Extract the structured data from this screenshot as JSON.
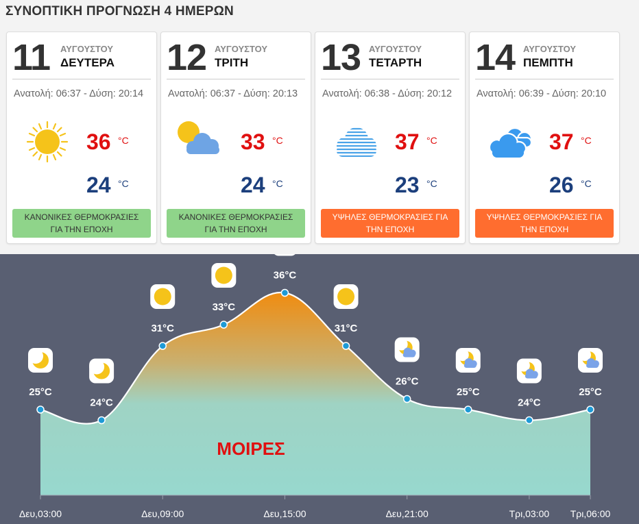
{
  "page_title": "ΣΥΝΟΠΤΙΚΗ ΠΡΟΓΝΩΣΗ 4 ΗΜΕΡΩΝ",
  "days": [
    {
      "day": "11",
      "month": "ΑΥΓΟΥΣΤΟΥ",
      "weekday": "ΔΕΥΤΕΡΑ",
      "sun_times": "Ανατολή: 06:37 - Δύση: 20:14",
      "icon": "sun-icon",
      "max": "36",
      "min": "24",
      "unit": "°C",
      "badge": "ΚΑΝΟΝΙΚΕΣ ΘΕΡΜΟΚΡΑΣΙΕΣ ΓΙΑ ΤΗΝ ΕΠΟΧΗ",
      "badge_type": "normal"
    },
    {
      "day": "12",
      "month": "ΑΥΓΟΥΣΤΟΥ",
      "weekday": "ΤΡΙΤΗ",
      "sun_times": "Ανατολή: 06:37 - Δύση: 20:13",
      "icon": "partly-cloudy-icon",
      "max": "33",
      "min": "24",
      "unit": "°C",
      "badge": "ΚΑΝΟΝΙΚΕΣ ΘΕΡΜΟΚΡΑΣΙΕΣ ΓΙΑ ΤΗΝ ΕΠΟΧΗ",
      "badge_type": "normal"
    },
    {
      "day": "13",
      "month": "ΑΥΓΟΥΣΤΟΥ",
      "weekday": "ΤΕΤΑΡΤΗ",
      "sun_times": "Ανατολή: 06:38 - Δύση: 20:12",
      "icon": "haze-icon",
      "max": "37",
      "min": "23",
      "unit": "°C",
      "badge": "ΥΨΗΛΕΣ ΘΕΡΜΟΚΡΑΣΙΕΣ ΓΙΑ ΤΗΝ ΕΠΟΧΗ",
      "badge_type": "high"
    },
    {
      "day": "14",
      "month": "ΑΥΓΟΥΣΤΟΥ",
      "weekday": "ΠΕΜΠΤΗ",
      "sun_times": "Ανατολή: 06:39 - Δύση: 20:10",
      "icon": "cloudy-icon",
      "max": "37",
      "min": "26",
      "unit": "°C",
      "badge": "ΥΨΗΛΕΣ ΘΕΡΜΟΚΡΑΣΙΕΣ ΓΙΑ ΤΗΝ ΕΠΟΧΗ",
      "badge_type": "high"
    }
  ],
  "colors": {
    "max_temp": "#e01010",
    "min_temp": "#1c3f7c",
    "badge_normal": "#8fd48a",
    "badge_high": "#ff6d2f",
    "chart_bg": "#595f72",
    "area_top": "#f08c10",
    "area_bottom": "#97d8ce",
    "point": "#1e9ad6"
  },
  "chart_data": {
    "type": "area",
    "center_label": "ΜΟΙΡΕΣ",
    "x_ticks": [
      "Δευ,03:00",
      "Δευ,09:00",
      "Δευ,15:00",
      "Δευ,21:00",
      "Τρι,03:00",
      "Τρι,06:00"
    ],
    "points": [
      {
        "time": "Δευ,03:00",
        "value": 25,
        "label": "25°C",
        "icon": "moon-icon"
      },
      {
        "time": "Δευ,06:00",
        "value": 24,
        "label": "24°C",
        "icon": "moon-icon"
      },
      {
        "time": "Δευ,09:00",
        "value": 31,
        "label": "31°C",
        "icon": "sun-icon"
      },
      {
        "time": "Δευ,12:00",
        "value": 33,
        "label": "33°C",
        "icon": "sun-icon"
      },
      {
        "time": "Δευ,15:00",
        "value": 36,
        "label": "36°C",
        "icon": "sun-icon"
      },
      {
        "time": "Δευ,18:00",
        "value": 31,
        "label": "31°C",
        "icon": "sun-icon"
      },
      {
        "time": "Δευ,21:00",
        "value": 26,
        "label": "26°C",
        "icon": "moon-cloud-icon"
      },
      {
        "time": "Τρι,00:00",
        "value": 25,
        "label": "25°C",
        "icon": "moon-cloud-icon"
      },
      {
        "time": "Τρι,03:00",
        "value": 24,
        "label": "24°C",
        "icon": "moon-cloud-icon"
      },
      {
        "time": "Τρι,06:00",
        "value": 25,
        "label": "25°C",
        "icon": "moon-cloud-icon"
      }
    ]
  }
}
